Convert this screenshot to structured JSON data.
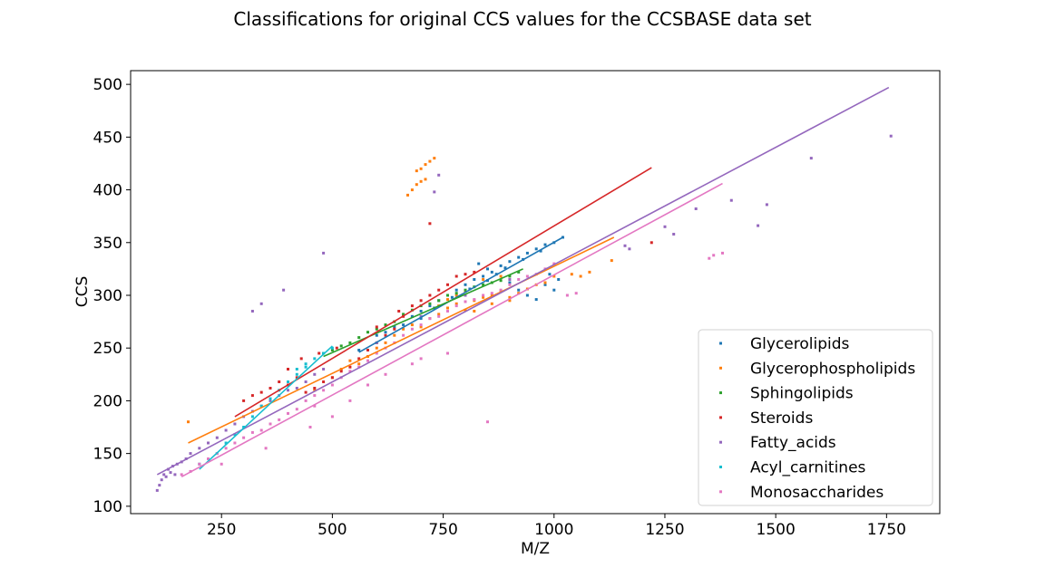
{
  "chart_data": {
    "type": "scatter",
    "title": "Classifications for original CCS values for the CCSBASE data set",
    "xlabel": "M/Z",
    "ylabel": "CCS",
    "xlim": [
      45,
      1870
    ],
    "ylim": [
      93,
      513
    ],
    "xticks": [
      250,
      500,
      750,
      1000,
      1250,
      1500,
      1750
    ],
    "yticks": [
      100,
      150,
      200,
      250,
      300,
      350,
      400,
      450,
      500
    ],
    "grid": false,
    "legend_position": "bottom-right",
    "series": [
      {
        "name": "Glycerolipids",
        "color": "#1f77b4",
        "points": [
          [
            560,
            248
          ],
          [
            600,
            262
          ],
          [
            640,
            270
          ],
          [
            680,
            280
          ],
          [
            700,
            285
          ],
          [
            720,
            290
          ],
          [
            740,
            295
          ],
          [
            760,
            300
          ],
          [
            780,
            305
          ],
          [
            800,
            310
          ],
          [
            820,
            315
          ],
          [
            840,
            318
          ],
          [
            860,
            322
          ],
          [
            880,
            328
          ],
          [
            900,
            332
          ],
          [
            920,
            336
          ],
          [
            940,
            340
          ],
          [
            960,
            344
          ],
          [
            980,
            348
          ],
          [
            1000,
            350
          ],
          [
            1020,
            355
          ],
          [
            830,
            330
          ],
          [
            850,
            325
          ],
          [
            870,
            320
          ],
          [
            900,
            312
          ],
          [
            920,
            305
          ],
          [
            940,
            300
          ],
          [
            960,
            296
          ],
          [
            980,
            310
          ],
          [
            1000,
            305
          ],
          [
            620,
            265
          ],
          [
            660,
            272
          ],
          [
            700,
            278
          ],
          [
            730,
            288
          ],
          [
            770,
            298
          ],
          [
            810,
            306
          ],
          [
            850,
            314
          ],
          [
            890,
            326
          ],
          [
            930,
            334
          ],
          [
            970,
            342
          ],
          [
            990,
            320
          ],
          [
            1010,
            315
          ]
        ],
        "fit": [
          [
            560,
            246
          ],
          [
            1020,
            355
          ]
        ]
      },
      {
        "name": "Glycerophospholipids",
        "color": "#ff7f0e",
        "points": [
          [
            175,
            180
          ],
          [
            460,
            210
          ],
          [
            500,
            222
          ],
          [
            520,
            230
          ],
          [
            540,
            238
          ],
          [
            560,
            235
          ],
          [
            580,
            242
          ],
          [
            600,
            250
          ],
          [
            620,
            255
          ],
          [
            640,
            262
          ],
          [
            660,
            268
          ],
          [
            680,
            272
          ],
          [
            700,
            270
          ],
          [
            720,
            278
          ],
          [
            740,
            282
          ],
          [
            760,
            288
          ],
          [
            780,
            292
          ],
          [
            800,
            286
          ],
          [
            820,
            295
          ],
          [
            840,
            298
          ],
          [
            860,
            300
          ],
          [
            880,
            304
          ],
          [
            900,
            298
          ],
          [
            920,
            302
          ],
          [
            940,
            306
          ],
          [
            960,
            310
          ],
          [
            980,
            312
          ],
          [
            1000,
            318
          ],
          [
            1040,
            320
          ],
          [
            1060,
            318
          ],
          [
            1080,
            322
          ],
          [
            1130,
            333
          ],
          [
            670,
            395
          ],
          [
            680,
            400
          ],
          [
            690,
            405
          ],
          [
            700,
            408
          ],
          [
            710,
            410
          ],
          [
            690,
            418
          ],
          [
            700,
            420
          ],
          [
            710,
            424
          ],
          [
            720,
            427
          ],
          [
            730,
            430
          ],
          [
            740,
            290
          ],
          [
            780,
            300
          ],
          [
            820,
            285
          ],
          [
            860,
            292
          ],
          [
            900,
            295
          ],
          [
            840,
            315
          ],
          [
            880,
            318
          ],
          [
            800,
            304
          ],
          [
            760,
            296
          ]
        ],
        "fit": [
          [
            175,
            160
          ],
          [
            1135,
            355
          ]
        ]
      },
      {
        "name": "Sphingolipids",
        "color": "#2ca02c",
        "points": [
          [
            540,
            255
          ],
          [
            560,
            260
          ],
          [
            580,
            265
          ],
          [
            600,
            268
          ],
          [
            620,
            272
          ],
          [
            640,
            275
          ],
          [
            660,
            282
          ],
          [
            680,
            286
          ],
          [
            700,
            290
          ],
          [
            720,
            292
          ],
          [
            740,
            295
          ],
          [
            760,
            300
          ],
          [
            780,
            302
          ],
          [
            800,
            305
          ],
          [
            820,
            308
          ],
          [
            840,
            310
          ],
          [
            860,
            312
          ],
          [
            880,
            314
          ],
          [
            900,
            318
          ],
          [
            920,
            322
          ],
          [
            480,
            245
          ],
          [
            500,
            248
          ],
          [
            520,
            252
          ]
        ],
        "fit": [
          [
            480,
            242
          ],
          [
            930,
            325
          ]
        ]
      },
      {
        "name": "Steroids",
        "color": "#d62728",
        "points": [
          [
            300,
            200
          ],
          [
            320,
            205
          ],
          [
            340,
            208
          ],
          [
            360,
            212
          ],
          [
            380,
            218
          ],
          [
            400,
            215
          ],
          [
            420,
            222
          ],
          [
            440,
            208
          ],
          [
            460,
            212
          ],
          [
            480,
            218
          ],
          [
            500,
            222
          ],
          [
            520,
            228
          ],
          [
            540,
            232
          ],
          [
            560,
            240
          ],
          [
            580,
            248
          ],
          [
            600,
            255
          ],
          [
            620,
            262
          ],
          [
            640,
            268
          ],
          [
            660,
            280
          ],
          [
            680,
            290
          ],
          [
            700,
            295
          ],
          [
            720,
            300
          ],
          [
            740,
            305
          ],
          [
            760,
            310
          ],
          [
            780,
            318
          ],
          [
            800,
            320
          ],
          [
            820,
            322
          ],
          [
            720,
            368
          ],
          [
            1220,
            350
          ],
          [
            400,
            230
          ],
          [
            430,
            240
          ],
          [
            470,
            245
          ],
          [
            510,
            250
          ],
          [
            600,
            270
          ],
          [
            650,
            285
          ]
        ],
        "fit": [
          [
            280,
            185
          ],
          [
            1220,
            421
          ]
        ]
      },
      {
        "name": "Fatty_acids",
        "color": "#9467bd",
        "points": [
          [
            105,
            115
          ],
          [
            110,
            120
          ],
          [
            115,
            125
          ],
          [
            120,
            130
          ],
          [
            125,
            128
          ],
          [
            130,
            135
          ],
          [
            135,
            132
          ],
          [
            140,
            138
          ],
          [
            145,
            130
          ],
          [
            150,
            140
          ],
          [
            160,
            142
          ],
          [
            170,
            145
          ],
          [
            180,
            150
          ],
          [
            200,
            155
          ],
          [
            220,
            160
          ],
          [
            240,
            165
          ],
          [
            260,
            172
          ],
          [
            280,
            178
          ],
          [
            300,
            185
          ],
          [
            320,
            190
          ],
          [
            340,
            195
          ],
          [
            360,
            200
          ],
          [
            380,
            205
          ],
          [
            400,
            210
          ],
          [
            420,
            212
          ],
          [
            440,
            218
          ],
          [
            460,
            225
          ],
          [
            480,
            230
          ],
          [
            320,
            285
          ],
          [
            340,
            292
          ],
          [
            390,
            305
          ],
          [
            480,
            340
          ],
          [
            740,
            414
          ],
          [
            730,
            398
          ],
          [
            1160,
            347
          ],
          [
            1270,
            358
          ],
          [
            1320,
            382
          ],
          [
            1400,
            390
          ],
          [
            1460,
            366
          ],
          [
            1480,
            386
          ],
          [
            1580,
            430
          ],
          [
            1760,
            451
          ],
          [
            1170,
            344
          ],
          [
            1250,
            365
          ],
          [
            600,
            255
          ],
          [
            700,
            280
          ],
          [
            800,
            300
          ],
          [
            900,
            315
          ]
        ],
        "fit": [
          [
            105,
            130
          ],
          [
            1755,
            497
          ]
        ]
      },
      {
        "name": "Acyl_carnitines",
        "color": "#17becf",
        "points": [
          [
            200,
            140
          ],
          [
            220,
            145
          ],
          [
            240,
            150
          ],
          [
            260,
            160
          ],
          [
            280,
            168
          ],
          [
            300,
            175
          ],
          [
            320,
            185
          ],
          [
            340,
            195
          ],
          [
            360,
            202
          ],
          [
            380,
            210
          ],
          [
            400,
            218
          ],
          [
            420,
            225
          ],
          [
            440,
            232
          ],
          [
            460,
            240
          ],
          [
            480,
            245
          ],
          [
            500,
            250
          ],
          [
            420,
            230
          ],
          [
            440,
            235
          ]
        ],
        "fit": [
          [
            200,
            135
          ],
          [
            500,
            252
          ]
        ]
      },
      {
        "name": "Monosaccharides",
        "color": "#e377c2",
        "points": [
          [
            160,
            130
          ],
          [
            180,
            133
          ],
          [
            200,
            140
          ],
          [
            220,
            145
          ],
          [
            240,
            150
          ],
          [
            260,
            155
          ],
          [
            280,
            160
          ],
          [
            300,
            165
          ],
          [
            320,
            170
          ],
          [
            340,
            172
          ],
          [
            360,
            178
          ],
          [
            380,
            182
          ],
          [
            400,
            188
          ],
          [
            420,
            192
          ],
          [
            440,
            200
          ],
          [
            460,
            205
          ],
          [
            480,
            210
          ],
          [
            500,
            215
          ],
          [
            520,
            222
          ],
          [
            540,
            228
          ],
          [
            560,
            232
          ],
          [
            580,
            238
          ],
          [
            600,
            245
          ],
          [
            620,
            250
          ],
          [
            640,
            255
          ],
          [
            660,
            262
          ],
          [
            680,
            268
          ],
          [
            700,
            272
          ],
          [
            720,
            278
          ],
          [
            740,
            280
          ],
          [
            760,
            285
          ],
          [
            780,
            290
          ],
          [
            800,
            294
          ],
          [
            820,
            296
          ],
          [
            840,
            300
          ],
          [
            860,
            302
          ],
          [
            880,
            305
          ],
          [
            900,
            310
          ],
          [
            920,
            315
          ],
          [
            940,
            318
          ],
          [
            960,
            320
          ],
          [
            980,
            325
          ],
          [
            1000,
            330
          ],
          [
            1030,
            300
          ],
          [
            1050,
            302
          ],
          [
            540,
            200
          ],
          [
            500,
            185
          ],
          [
            460,
            195
          ],
          [
            620,
            225
          ],
          [
            700,
            240
          ],
          [
            760,
            245
          ],
          [
            850,
            180
          ],
          [
            1350,
            335
          ],
          [
            1360,
            338
          ],
          [
            1380,
            340
          ],
          [
            250,
            140
          ],
          [
            350,
            155
          ],
          [
            450,
            175
          ],
          [
            580,
            215
          ],
          [
            680,
            235
          ]
        ],
        "fit": [
          [
            160,
            128
          ],
          [
            1380,
            406
          ]
        ]
      }
    ]
  }
}
